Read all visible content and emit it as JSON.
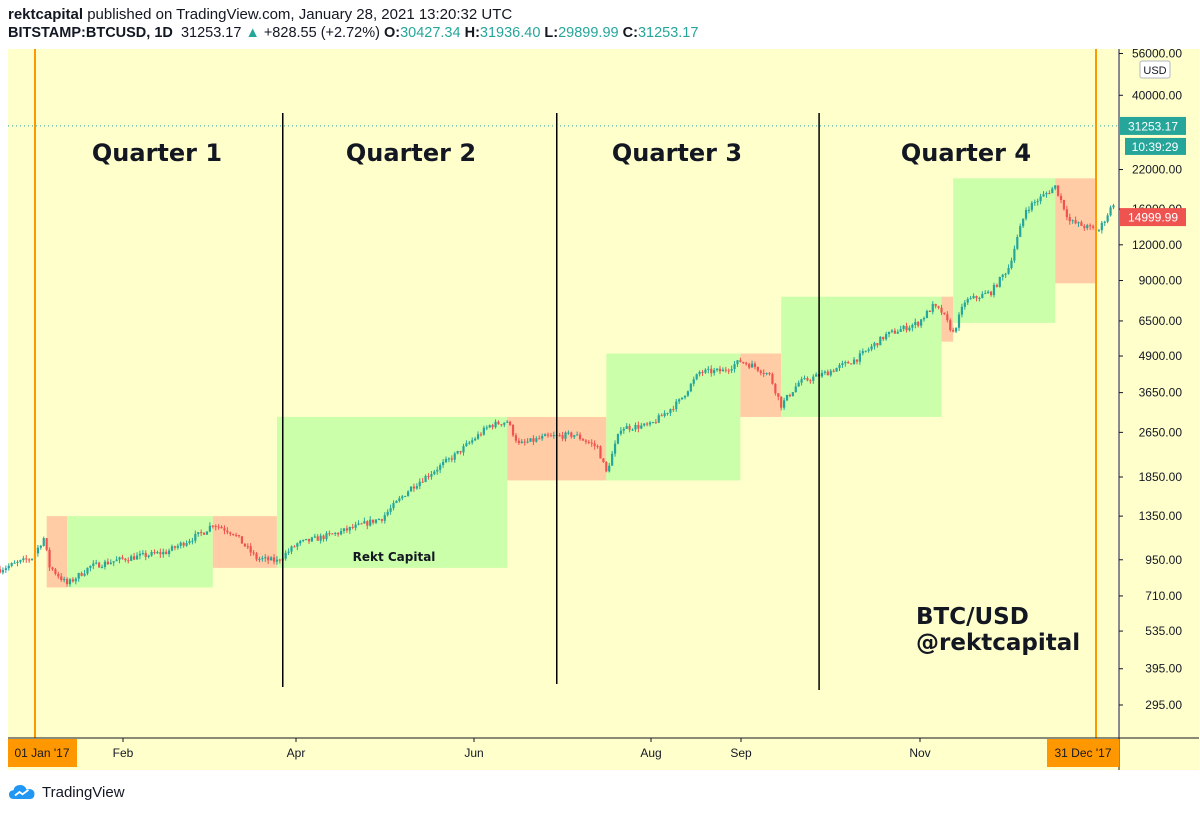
{
  "header": {
    "author": "rektcapital",
    "published": "published on TradingView.com, January 28, 2021 13:20:32 UTC",
    "symbol": "BITSTAMP:BTCUSD, 1D",
    "last": "31253.17",
    "change_arrow": "▲",
    "change": "+828.55 (+2.72%)",
    "o_label": "O:",
    "o": "30427.34",
    "h_label": "H:",
    "h": "31936.40",
    "l_label": "L:",
    "l": "29899.99",
    "c_label": "C:",
    "c": "31253.17"
  },
  "footer": {
    "logo_icon": "tradingview-cloud-icon",
    "brand": "TradingView"
  },
  "colors": {
    "background": "#ffffcc",
    "up": "#26a69a",
    "down": "#ef5350",
    "green_box": "#ccffaa",
    "red_box": "#ffcca6",
    "marker": "#ff9800",
    "price_tag_last": "#26a69a",
    "price_tag_marker": "#ef5350"
  },
  "chart_data": {
    "type": "candlestick",
    "scale": "log",
    "currency": "USD",
    "ylim": [
      250,
      60000
    ],
    "y_ticks": [
      "56000.00",
      "40000.00",
      "22000.00",
      "16000.00",
      "12000.00",
      "9000.00",
      "6500.00",
      "4900.00",
      "3650.00",
      "2650.00",
      "1850.00",
      "1350.00",
      "950.00",
      "710.00",
      "535.00",
      "395.00",
      "295.00"
    ],
    "x_ticks": [
      "Feb",
      "Apr",
      "Jun",
      "Aug",
      "Sep",
      "Nov"
    ],
    "range_markers": [
      "01 Jan '17",
      "31 Dec '17"
    ],
    "last_price": {
      "value": 31253.17,
      "label": "31253.17",
      "countdown": "10:39:29"
    },
    "crosshair_price": {
      "value": 14999.99,
      "label": "14999.99"
    },
    "quarter_labels": [
      "Quarter 1",
      "Quarter 2",
      "Quarter 3",
      "Quarter 4"
    ],
    "annotations": [
      "Rekt Capital",
      "BTC/USD",
      "@rektcapital"
    ],
    "boxes": [
      {
        "type": "red",
        "from": "2017-01-05",
        "to": "2017-01-12",
        "low": 760,
        "high": 1350
      },
      {
        "type": "green",
        "from": "2017-01-12",
        "to": "2017-03-03",
        "low": 760,
        "high": 1350
      },
      {
        "type": "red",
        "from": "2017-03-03",
        "to": "2017-03-25",
        "low": 890,
        "high": 1350
      },
      {
        "type": "green",
        "from": "2017-03-25",
        "to": "2017-06-12",
        "low": 890,
        "high": 3000
      },
      {
        "type": "red",
        "from": "2017-06-12",
        "to": "2017-07-16",
        "low": 1800,
        "high": 3000
      },
      {
        "type": "green",
        "from": "2017-07-16",
        "to": "2017-08-31",
        "low": 1800,
        "high": 5000
      },
      {
        "type": "red",
        "from": "2017-08-31",
        "to": "2017-09-14",
        "low": 3000,
        "high": 5000
      },
      {
        "type": "green",
        "from": "2017-09-14",
        "to": "2017-11-08",
        "low": 3000,
        "high": 7900
      },
      {
        "type": "red",
        "from": "2017-11-08",
        "to": "2017-11-12",
        "low": 5500,
        "high": 7900
      },
      {
        "type": "green",
        "from": "2017-11-12",
        "to": "2017-12-17",
        "low": 6400,
        "high": 20500
      },
      {
        "type": "red",
        "from": "2017-12-17",
        "to": "2017-12-31",
        "low": 8800,
        "high": 20500
      }
    ],
    "path": [
      [
        "2016-12-20",
        880
      ],
      [
        "2016-12-31",
        965
      ],
      [
        "2017-01-04",
        1130
      ],
      [
        "2017-01-06",
        900
      ],
      [
        "2017-01-12",
        780
      ],
      [
        "2017-01-20",
        900
      ],
      [
        "2017-02-01",
        960
      ],
      [
        "2017-02-15",
        1010
      ],
      [
        "2017-02-28",
        1190
      ],
      [
        "2017-03-03",
        1270
      ],
      [
        "2017-03-10",
        1180
      ],
      [
        "2017-03-18",
        960
      ],
      [
        "2017-03-25",
        940
      ],
      [
        "2017-04-01",
        1080
      ],
      [
        "2017-04-15",
        1180
      ],
      [
        "2017-04-30",
        1330
      ],
      [
        "2017-05-10",
        1700
      ],
      [
        "2017-05-25",
        2200
      ],
      [
        "2017-06-06",
        2800
      ],
      [
        "2017-06-12",
        2900
      ],
      [
        "2017-06-16",
        2400
      ],
      [
        "2017-06-25",
        2550
      ],
      [
        "2017-07-05",
        2600
      ],
      [
        "2017-07-13",
        2350
      ],
      [
        "2017-07-16",
        1920
      ],
      [
        "2017-07-21",
        2750
      ],
      [
        "2017-07-31",
        2800
      ],
      [
        "2017-08-10",
        3400
      ],
      [
        "2017-08-17",
        4300
      ],
      [
        "2017-08-25",
        4350
      ],
      [
        "2017-08-31",
        4700
      ],
      [
        "2017-09-05",
        4500
      ],
      [
        "2017-09-10",
        4200
      ],
      [
        "2017-09-14",
        3300
      ],
      [
        "2017-09-20",
        3950
      ],
      [
        "2017-09-30",
        4300
      ],
      [
        "2017-10-10",
        4800
      ],
      [
        "2017-10-20",
        5800
      ],
      [
        "2017-10-31",
        6400
      ],
      [
        "2017-11-05",
        7300
      ],
      [
        "2017-11-08",
        7000
      ],
      [
        "2017-11-12",
        5900
      ],
      [
        "2017-11-16",
        7600
      ],
      [
        "2017-11-25",
        8200
      ],
      [
        "2017-12-01",
        10000
      ],
      [
        "2017-12-07",
        16000
      ],
      [
        "2017-12-17",
        19200
      ],
      [
        "2017-12-22",
        14500
      ],
      [
        "2017-12-28",
        13800
      ],
      [
        "2018-01-01",
        13500
      ],
      [
        "2018-01-06",
        16800
      ]
    ]
  }
}
